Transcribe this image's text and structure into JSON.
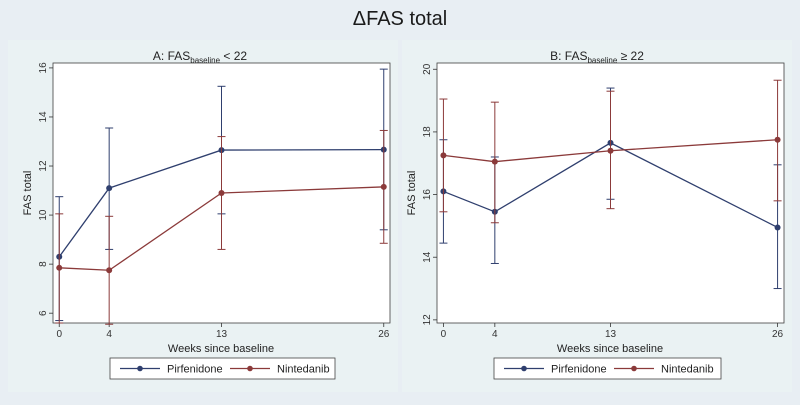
{
  "figure_title": "ΔFAS total",
  "chart_data": [
    {
      "type": "line",
      "title": "A: FAS",
      "title_subscript": "baseline",
      "title_suffix": " < 22",
      "xlabel": "Weeks since baseline",
      "ylabel": "FAS total",
      "x": [
        0,
        4,
        13,
        26
      ],
      "xticks": [
        0,
        4,
        13,
        26
      ],
      "xlim": [
        -0.5,
        26.5
      ],
      "yticks": [
        6,
        8,
        10,
        12,
        14,
        16
      ],
      "ylim": [
        5.6,
        16.2
      ],
      "series": [
        {
          "name": "Pirfenidone",
          "color": "#2f3f6e",
          "values": [
            8.3,
            11.1,
            12.65,
            12.67
          ],
          "ci_low": [
            5.7,
            8.6,
            10.05,
            9.4
          ],
          "ci_high": [
            10.75,
            13.55,
            15.25,
            15.95
          ]
        },
        {
          "name": "Nintedanib",
          "color": "#8b3a3a",
          "values": [
            7.85,
            7.75,
            10.9,
            11.15
          ],
          "ci_low": [
            5.6,
            5.55,
            8.6,
            8.85
          ],
          "ci_high": [
            10.05,
            9.95,
            13.2,
            13.45
          ]
        }
      ],
      "legend": [
        "Pirfenidone",
        "Nintedanib"
      ]
    },
    {
      "type": "line",
      "title": "B: FAS",
      "title_subscript": "baseline",
      "title_suffix": " ≥ 22",
      "xlabel": "Weeks since baseline",
      "ylabel": "FAS total",
      "x": [
        0,
        4,
        13,
        26
      ],
      "xticks": [
        0,
        4,
        13,
        26
      ],
      "xlim": [
        -0.5,
        26.5
      ],
      "yticks": [
        12,
        14,
        16,
        18,
        20
      ],
      "ylim": [
        11.9,
        20.2
      ],
      "series": [
        {
          "name": "Pirfenidone",
          "color": "#2f3f6e",
          "values": [
            16.1,
            15.45,
            17.65,
            14.95
          ],
          "ci_low": [
            14.45,
            13.8,
            15.85,
            13.0
          ],
          "ci_high": [
            17.75,
            17.2,
            19.4,
            16.95
          ]
        },
        {
          "name": "Nintedanib",
          "color": "#8b3a3a",
          "values": [
            17.25,
            17.05,
            17.4,
            17.75
          ],
          "ci_low": [
            15.45,
            15.1,
            15.55,
            15.8
          ],
          "ci_high": [
            19.05,
            18.95,
            19.3,
            19.65
          ]
        }
      ],
      "legend": [
        "Pirfenidone",
        "Nintedanib"
      ]
    }
  ]
}
